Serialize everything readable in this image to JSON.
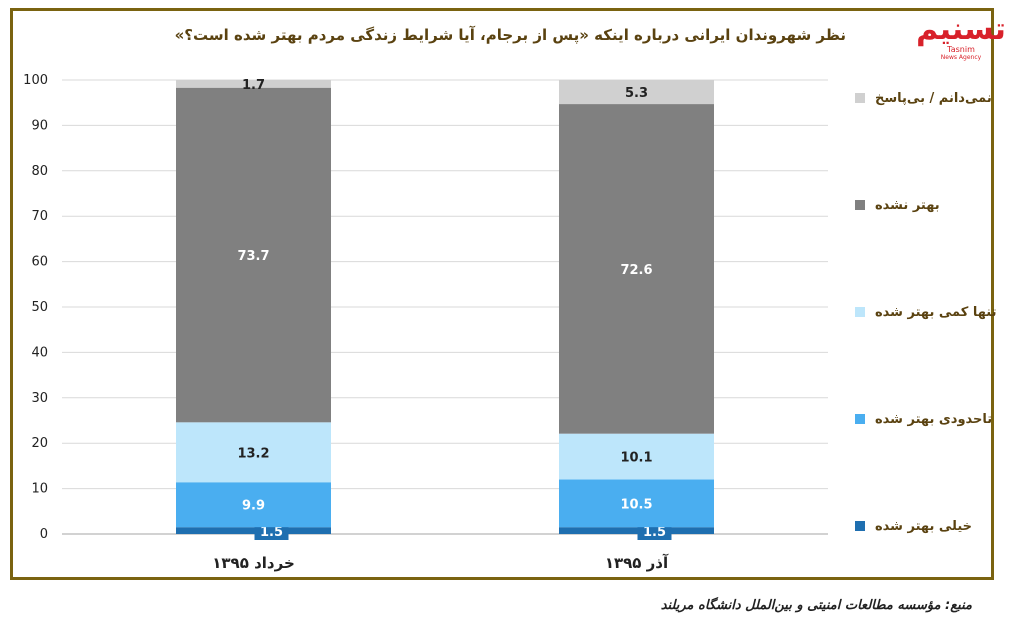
{
  "title": "نظر شهروندان ایرانی درباره اینکه «پس از برجام، آیا شرایط زندگی مردم بهتر شده است؟»",
  "logo": {
    "mark": "تسنیم",
    "sub": "Tasnim",
    "sub2": "News Agency"
  },
  "source": "منبع: مؤسسه مطالعات امنیتی و بین‌الملل دانشگاه مریلند",
  "chart_data": {
    "type": "bar",
    "stacked": true,
    "categories": [
      "خرداد ۱۳۹۵",
      "آذر ۱۳۹۵"
    ],
    "ylim": [
      0,
      100
    ],
    "yticks": [
      0,
      10,
      20,
      30,
      40,
      50,
      60,
      70,
      80,
      90,
      100
    ],
    "grid": true,
    "legend_position": "right",
    "series": [
      {
        "name": "خیلی بهتر شده",
        "values": [
          1.5,
          1.5
        ],
        "color": "#1f6fb0"
      },
      {
        "name": "تاحدودی بهتر شده",
        "values": [
          9.9,
          10.5
        ],
        "color": "#4aaef0"
      },
      {
        "name": "تنها کمی بهتر شده",
        "values": [
          13.2,
          10.1
        ],
        "color": "#bde6fb"
      },
      {
        "name": "بهتر نشده",
        "values": [
          73.7,
          72.6
        ],
        "color": "#808080"
      },
      {
        "name": "نمی‌دانم / بی‌پاسخ",
        "values": [
          1.7,
          5.3
        ],
        "color": "#d0d0d0"
      }
    ]
  }
}
